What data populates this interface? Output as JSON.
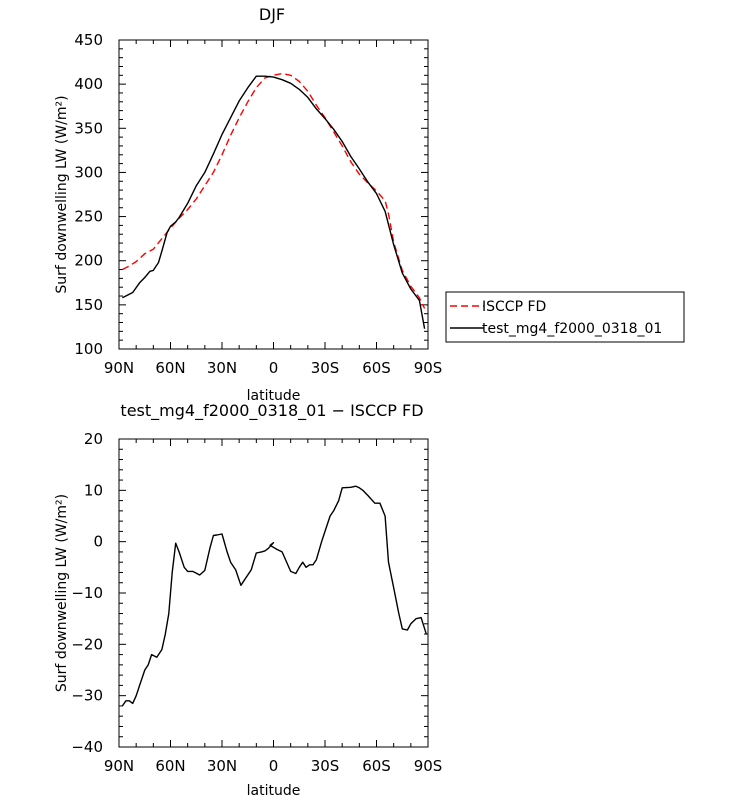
{
  "chart_data": [
    {
      "type": "line",
      "title": "DJF",
      "xlabel": "latitude",
      "ylabel": "Surf downwelling LW (W/m²)",
      "xlim": [
        -90,
        90
      ],
      "ylim": [
        100,
        450
      ],
      "x_ticks": [
        -90,
        -60,
        -30,
        0,
        30,
        60,
        90
      ],
      "x_tick_labels": [
        "90N",
        "60N",
        "30N",
        "0",
        "30S",
        "60S",
        "90S"
      ],
      "y_ticks": [
        100,
        150,
        200,
        250,
        300,
        350,
        400,
        450
      ],
      "y_tick_labels": [
        "100",
        "150",
        "200",
        "250",
        "300",
        "350",
        "400",
        "450"
      ],
      "legend_position": "right",
      "series": [
        {
          "name": "ISCCP FD",
          "color": "#ff0000",
          "style": "dashed",
          "x": [
            -88,
            -85,
            -80,
            -75,
            -70,
            -65,
            -60,
            -55,
            -50,
            -45,
            -40,
            -35,
            -30,
            -25,
            -20,
            -15,
            -10,
            -5,
            0,
            5,
            10,
            15,
            20,
            25,
            30,
            35,
            40,
            45,
            50,
            55,
            60,
            65,
            67,
            70,
            75,
            80,
            85,
            88
          ],
          "y": [
            190,
            193,
            199,
            208,
            213,
            225,
            237,
            248,
            258,
            270,
            285,
            300,
            320,
            342,
            362,
            380,
            396,
            407,
            410,
            412,
            410,
            403,
            392,
            376,
            362,
            346,
            330,
            312,
            298,
            288,
            279,
            268,
            253,
            221,
            189,
            171,
            158,
            146
          ]
        },
        {
          "name": "test_mg4_f2000_0318_01",
          "color": "#000000",
          "style": "solid",
          "x": [
            -88,
            -85,
            -82,
            -78,
            -75,
            -72,
            -70,
            -67,
            -65,
            -62,
            -60,
            -57,
            -55,
            -50,
            -45,
            -40,
            -35,
            -30,
            -25,
            -20,
            -15,
            -10,
            -5,
            0,
            5,
            10,
            15,
            20,
            25,
            30,
            35,
            40,
            45,
            50,
            55,
            60,
            65,
            70,
            75,
            80,
            85,
            88
          ],
          "y": [
            158,
            161,
            164,
            175,
            181,
            188,
            189,
            198,
            211,
            232,
            239,
            244,
            249,
            265,
            285,
            300,
            321,
            343,
            362,
            381,
            396,
            409,
            409,
            408,
            405,
            401,
            394,
            385,
            372,
            361,
            349,
            335,
            318,
            304,
            289,
            276,
            256,
            218,
            186,
            168,
            155,
            123
          ]
        }
      ]
    },
    {
      "type": "line",
      "title": "test_mg4_f2000_0318_01 − ISCCP FD",
      "xlabel": "latitude",
      "ylabel": "Surf downwelling LW (W/m²)",
      "xlim": [
        -90,
        90
      ],
      "ylim": [
        -40,
        20
      ],
      "x_ticks": [
        -90,
        -60,
        -30,
        0,
        30,
        60,
        90
      ],
      "x_tick_labels": [
        "90N",
        "60N",
        "30N",
        "0",
        "30S",
        "60S",
        "90S"
      ],
      "y_ticks": [
        -40,
        -30,
        -20,
        -10,
        0,
        10,
        20
      ],
      "y_tick_labels": [
        "−40",
        "−30",
        "−20",
        "−10",
        "0",
        "10",
        "20"
      ],
      "series": [
        {
          "color": "#000000",
          "style": "solid",
          "x": [
            -88,
            -86,
            -84,
            -82,
            -80,
            -78,
            -75,
            -73,
            -71,
            -68,
            -65,
            -63,
            -61,
            -59,
            -57,
            -55,
            -52,
            -50,
            -47,
            -43,
            -40,
            -37,
            -35,
            -33,
            -30,
            -27,
            -25,
            -22,
            -19,
            -17,
            -13,
            -10,
            -7,
            -5,
            -3,
            0,
            -2,
            2,
            5,
            7,
            10,
            13,
            15,
            17,
            19,
            21,
            23,
            25,
            28,
            30,
            33,
            35,
            38,
            40,
            45,
            48,
            50,
            52,
            55,
            59,
            62,
            65,
            67,
            70,
            73,
            75,
            78,
            80,
            83,
            86,
            89
          ],
          "y": [
            -32,
            -31,
            -31,
            -31.5,
            -30,
            -28,
            -25,
            -24,
            -22,
            -22.5,
            -21,
            -18,
            -14,
            -6,
            -0.3,
            -2,
            -5,
            -5.8,
            -5.8,
            -6.5,
            -5.6,
            -1.2,
            1.2,
            1.3,
            1.5,
            -2,
            -4,
            -5.5,
            -8.5,
            -7.5,
            -5.5,
            -2.2,
            -2,
            -1.8,
            -1.3,
            -0.2,
            -0.7,
            -1.5,
            -2,
            -3.5,
            -5.8,
            -6.2,
            -5,
            -4,
            -5,
            -4.5,
            -4.5,
            -3.5,
            0,
            2,
            5,
            6,
            8,
            10.5,
            10.6,
            10.8,
            10.5,
            10,
            9,
            7.5,
            7.5,
            5,
            -4,
            -9,
            -14,
            -17,
            -17.2,
            -16,
            -15,
            -14.8,
            -18
          ]
        }
      ]
    }
  ]
}
